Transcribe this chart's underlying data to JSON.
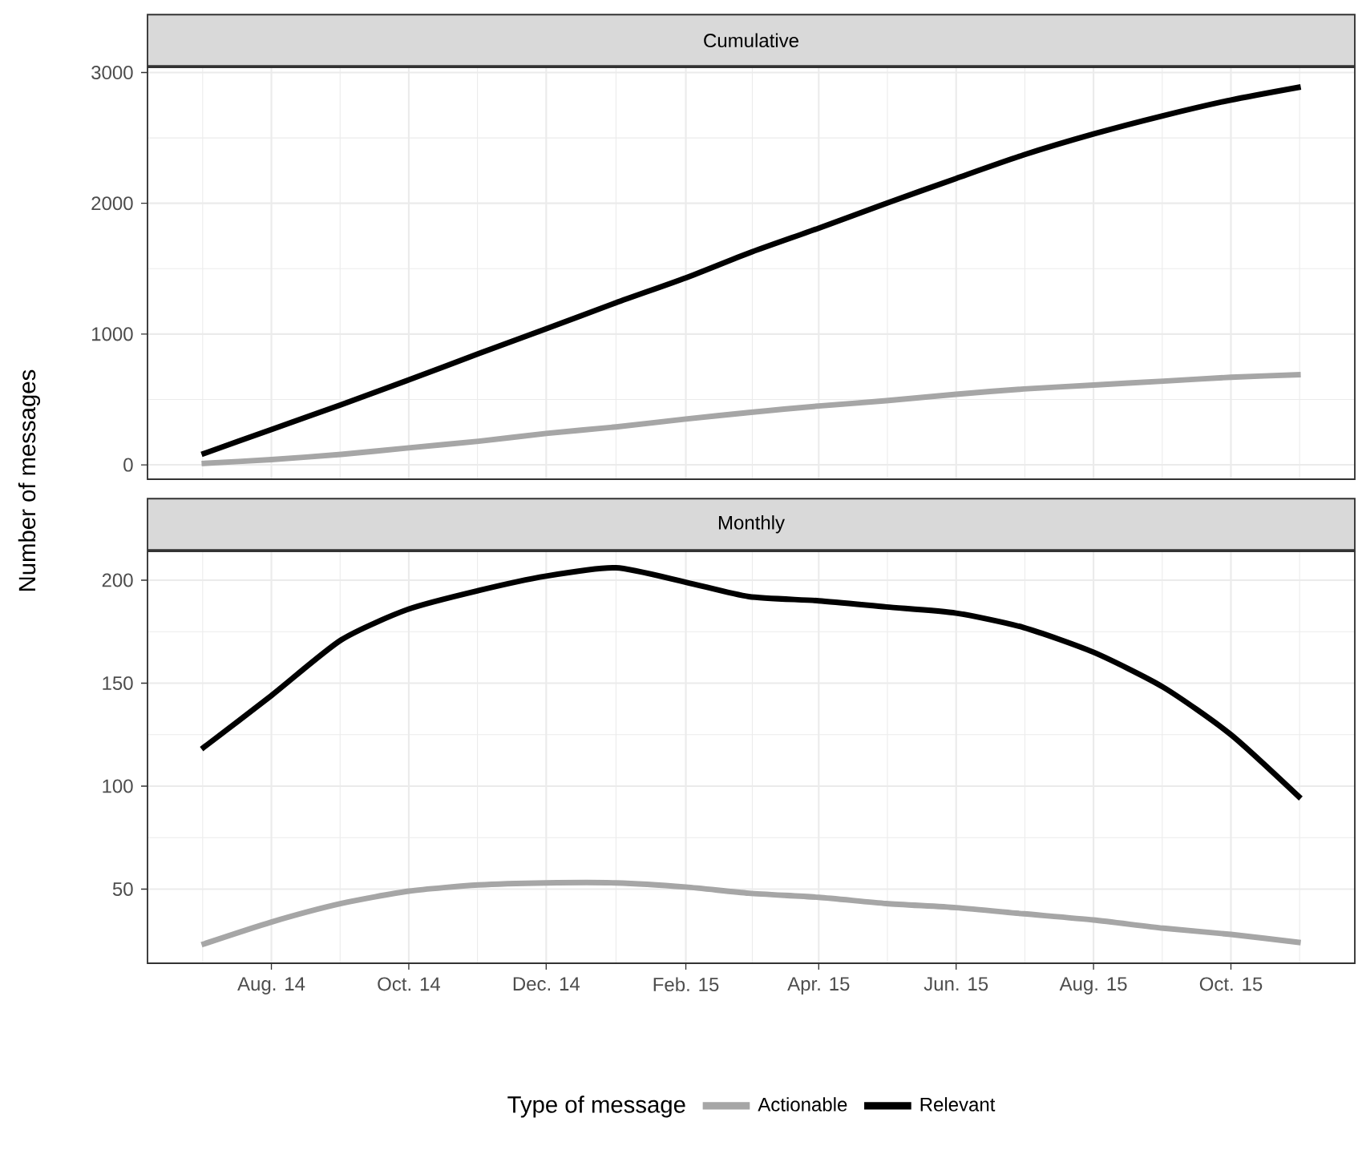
{
  "chart_data": [
    {
      "type": "line",
      "title": "Cumulative",
      "ylabel": "Number of messages",
      "x": [
        "2014-07",
        "2014-08",
        "2014-09",
        "2014-10",
        "2014-11",
        "2014-12",
        "2015-01",
        "2015-02",
        "2015-03",
        "2015-04",
        "2015-05",
        "2015-06",
        "2015-07",
        "2015-08",
        "2015-09",
        "2015-10",
        "2015-11"
      ],
      "xlim": [
        "2014-06-07",
        "2015-11-25"
      ],
      "xticks": [
        {
          "value": "2014-08",
          "label": null
        },
        {
          "value": "2014-10",
          "label": null
        },
        {
          "value": "2014-12",
          "label": null
        },
        {
          "value": "2015-02",
          "label": null
        },
        {
          "value": "2015-04",
          "label": null
        },
        {
          "value": "2015-06",
          "label": null
        },
        {
          "value": "2015-08",
          "label": null
        },
        {
          "value": "2015-10",
          "label": null
        }
      ],
      "ylim": [
        -110,
        3040
      ],
      "yticks": [
        0,
        1000,
        2000,
        3000
      ],
      "grid": true,
      "tick_labels": "y",
      "series": [
        {
          "color": "#a6a6a6",
          "values": [
            10,
            40,
            80,
            130,
            180,
            240,
            290,
            350,
            400,
            450,
            490,
            540,
            580,
            610,
            640,
            670,
            690
          ]
        },
        {
          "color": "#000000",
          "values": [
            80,
            270,
            460,
            650,
            850,
            1040,
            1240,
            1430,
            1620,
            1810,
            2000,
            2190,
            2370,
            2530,
            2670,
            2790,
            2890
          ]
        }
      ]
    },
    {
      "type": "line",
      "title": "Monthly",
      "x": [
        "2014-07",
        "2014-08",
        "2014-09",
        "2014-10",
        "2014-11",
        "2014-12",
        "2015-01",
        "2015-02",
        "2015-03",
        "2015-04",
        "2015-05",
        "2015-06",
        "2015-07",
        "2015-08",
        "2015-09",
        "2015-10",
        "2015-11"
      ],
      "xlim": [
        "2014-06-07",
        "2015-11-25"
      ],
      "xticks": [
        {
          "value": "2014-08",
          "label": "Aug. 14"
        },
        {
          "value": "2014-10",
          "label": "Oct. 14"
        },
        {
          "value": "2014-12",
          "label": "Dec. 14"
        },
        {
          "value": "2015-02",
          "label": "Feb. 15"
        },
        {
          "value": "2015-04",
          "label": "Apr. 15"
        },
        {
          "value": "2015-06",
          "label": "Jun. 15"
        },
        {
          "value": "2015-08",
          "label": "Aug. 15"
        },
        {
          "value": "2015-10",
          "label": "Oct. 15"
        }
      ],
      "ylim": [
        14,
        214
      ],
      "yticks": [
        50,
        100,
        150,
        200
      ],
      "grid": true,
      "legend": "bottom",
      "legend_title": "Type of message",
      "series": [
        {
          "name": "Actionable",
          "color": "#a6a6a6",
          "values": [
            23,
            34,
            43,
            49,
            52,
            53,
            53,
            51,
            48,
            46,
            43,
            41,
            38,
            35,
            31,
            28,
            24
          ]
        },
        {
          "name": "Relevant",
          "color": "#000000",
          "values": [
            118,
            144,
            171,
            186,
            195,
            202,
            206,
            199,
            192,
            190,
            187,
            184,
            177,
            165,
            148,
            125,
            94
          ]
        }
      ]
    }
  ]
}
